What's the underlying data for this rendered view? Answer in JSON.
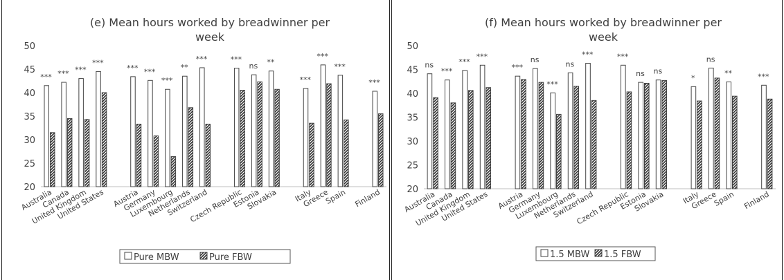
{
  "colors": {
    "axis": "#bfbfbf",
    "text": "#404040",
    "bar_stroke": "#444444",
    "fbw_fill": "#303030"
  },
  "chart_data": [
    {
      "type": "bar",
      "title_line1": "(e) Mean hours worked by breadwinner per",
      "title_line2": "week",
      "ylim": [
        20,
        50
      ],
      "yticks": [
        "20",
        "25",
        "30",
        "35",
        "40",
        "45",
        "50"
      ],
      "categories": [
        "Australia",
        "Canada",
        "United Kingdom",
        "United States",
        "Austria",
        "Germany",
        "Luxembourg",
        "Netherlands",
        "Switzerland",
        "Czech Republic",
        "Estonia",
        "Slovakia",
        "Italy",
        "Greece",
        "Spain",
        "Finland"
      ],
      "series": [
        {
          "name": "Pure MBW",
          "values": [
            41.5,
            42.2,
            43.0,
            44.5,
            43.4,
            42.6,
            40.7,
            43.5,
            45.3,
            45.2,
            43.8,
            44.6,
            40.9,
            45.9,
            43.7,
            40.3
          ]
        },
        {
          "name": "Pure FBW",
          "values": [
            31.5,
            34.5,
            34.3,
            40.0,
            33.3,
            30.8,
            26.4,
            36.8,
            33.3,
            40.5,
            42.3,
            40.7,
            33.5,
            41.9,
            34.2,
            35.5
          ]
        }
      ],
      "significance": [
        "***",
        "***",
        "***",
        "***",
        "***",
        "***",
        "***",
        "**",
        "***",
        "***",
        "ns",
        "**",
        "***",
        "***",
        "***",
        "***"
      ],
      "legend": [
        "Pure MBW",
        "Pure FBW"
      ]
    },
    {
      "type": "bar",
      "title_line1": "(f) Mean hours worked by breadwinner per",
      "title_line2": "week",
      "ylim": [
        20,
        50
      ],
      "yticks": [
        "20",
        "25",
        "30",
        "35",
        "40",
        "45",
        "50"
      ],
      "categories": [
        "Australia",
        "Canada",
        "United Kingdom",
        "United States",
        "Austria",
        "Germany",
        "Luxembourg",
        "Netherlands",
        "Switzerland",
        "Czech Republic",
        "Estonia",
        "Slovakia",
        "Italy",
        "Greece",
        "Spain",
        "Finland"
      ],
      "series": [
        {
          "name": "1.5 MBW",
          "values": [
            44.1,
            42.8,
            44.8,
            45.9,
            43.6,
            45.2,
            40.1,
            44.3,
            46.3,
            45.9,
            42.3,
            42.8,
            41.4,
            45.3,
            42.4,
            41.7
          ]
        },
        {
          "name": "1.5 FBW",
          "values": [
            39.1,
            38.0,
            40.6,
            41.2,
            42.9,
            42.3,
            35.6,
            41.5,
            38.5,
            40.3,
            42.1,
            42.7,
            38.4,
            43.2,
            39.4,
            38.8
          ]
        }
      ],
      "significance": [
        "ns",
        "***",
        "***",
        "***",
        "***",
        "ns",
        "***",
        "ns",
        "***",
        "***",
        "ns",
        "ns",
        "*",
        "ns",
        "**",
        "***"
      ],
      "legend": [
        "1.5 MBW",
        "1.5 FBW"
      ]
    }
  ]
}
